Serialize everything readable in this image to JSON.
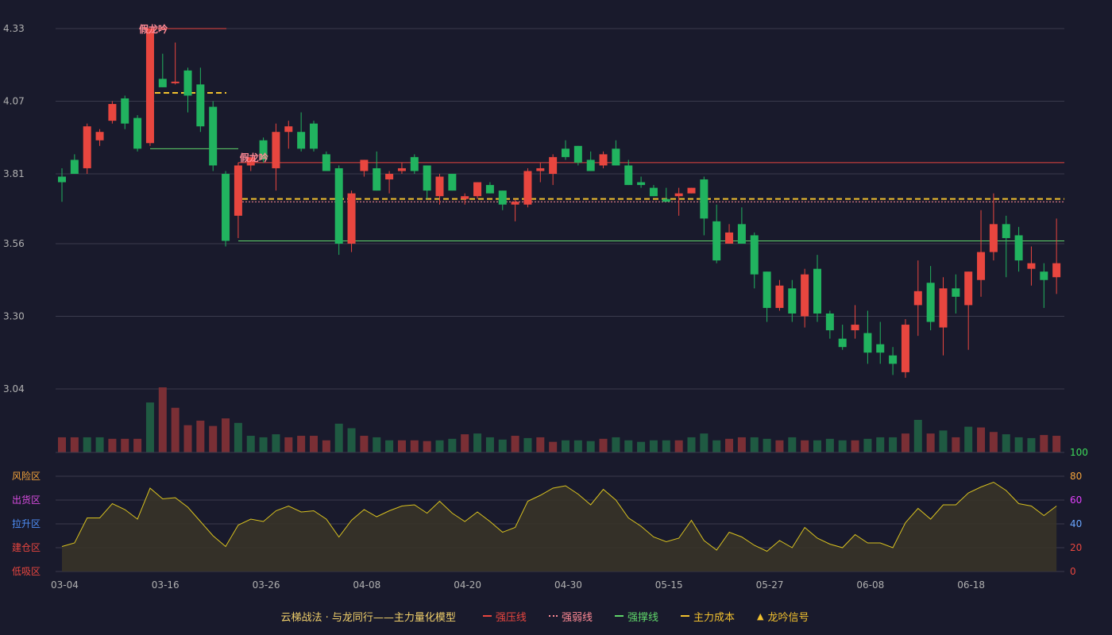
{
  "colors": {
    "bg": "#191a2c",
    "up": "#e8463f",
    "down": "#21b35f",
    "vol_up": "#7a2f35",
    "vol_down": "#1f5a42",
    "pressure": "#e8463f",
    "weak": "#ff8a95",
    "support": "#5fd66a",
    "cost": "#f2c12e",
    "grid": "#3a3b4d",
    "axis_text": "#b0b0b0",
    "area_line": "#d9c21f",
    "area_fill": "#3a3528"
  },
  "legend": {
    "title": "云梯战法 · 与龙同行——主力量化模型",
    "items": [
      {
        "label": "强压线",
        "color": "#e8463f",
        "style": "solid",
        "icon": "solid-line"
      },
      {
        "label": "强弱线",
        "color": "#ff8a95",
        "style": "dotted",
        "icon": "dotted-line"
      },
      {
        "label": "强撑线",
        "color": "#5fd66a",
        "style": "solid",
        "icon": "solid-line"
      },
      {
        "label": "主力成本",
        "color": "#f2c12e",
        "style": "dashed",
        "icon": "dashed-line"
      },
      {
        "label": "龙吟信号",
        "color": "#f2c12e",
        "style": "triangle",
        "icon": "triangle-icon"
      }
    ]
  },
  "chart_data": [
    {
      "type": "candlestick",
      "y_axis_ticks": [
        "3.04",
        "3.30",
        "3.56",
        "3.81",
        "4.07",
        "4.33"
      ],
      "ylim": [
        3.04,
        4.33
      ],
      "x_tick_labels": [
        {
          "index": 0,
          "label": "03-04"
        },
        {
          "index": 8,
          "label": "03-16"
        },
        {
          "index": 16,
          "label": "03-26"
        },
        {
          "index": 24,
          "label": "04-08"
        },
        {
          "index": 32,
          "label": "04-20"
        },
        {
          "index": 40,
          "label": "04-30"
        },
        {
          "index": 48,
          "label": "05-15"
        },
        {
          "index": 56,
          "label": "05-27"
        },
        {
          "index": 64,
          "label": "06-08"
        },
        {
          "index": 72,
          "label": "06-18"
        }
      ],
      "ohlc": [
        [
          3.8,
          3.83,
          3.71,
          3.78
        ],
        [
          3.86,
          3.88,
          3.81,
          3.81
        ],
        [
          3.83,
          3.99,
          3.81,
          3.98
        ],
        [
          3.93,
          3.97,
          3.91,
          3.96
        ],
        [
          4.0,
          4.07,
          3.99,
          4.06
        ],
        [
          4.08,
          4.09,
          3.97,
          3.99
        ],
        [
          4.01,
          4.02,
          3.89,
          3.9
        ],
        [
          3.92,
          4.33,
          3.91,
          4.33
        ],
        [
          4.15,
          4.24,
          4.12,
          4.12
        ],
        [
          4.14,
          4.28,
          4.13,
          4.14
        ],
        [
          4.18,
          4.19,
          4.03,
          4.09
        ],
        [
          4.13,
          4.19,
          3.96,
          3.98
        ],
        [
          4.05,
          4.07,
          3.82,
          3.84
        ],
        [
          3.81,
          3.82,
          3.55,
          3.57
        ],
        [
          3.66,
          3.85,
          3.58,
          3.84
        ],
        [
          3.84,
          3.86,
          3.82,
          3.87
        ],
        [
          3.93,
          3.94,
          3.85,
          3.86
        ],
        [
          3.83,
          3.99,
          3.75,
          3.96
        ],
        [
          3.96,
          4.0,
          3.9,
          3.98
        ],
        [
          3.96,
          4.03,
          3.89,
          3.9
        ],
        [
          3.99,
          4.0,
          3.89,
          3.9
        ],
        [
          3.88,
          3.89,
          3.82,
          3.82
        ],
        [
          3.83,
          3.84,
          3.52,
          3.56
        ],
        [
          3.56,
          3.75,
          3.53,
          3.74
        ],
        [
          3.82,
          3.86,
          3.8,
          3.86
        ],
        [
          3.83,
          3.89,
          3.75,
          3.75
        ],
        [
          3.79,
          3.82,
          3.74,
          3.81
        ],
        [
          3.82,
          3.85,
          3.81,
          3.83
        ],
        [
          3.87,
          3.88,
          3.81,
          3.82
        ],
        [
          3.84,
          3.84,
          3.72,
          3.75
        ],
        [
          3.73,
          3.81,
          3.7,
          3.8
        ],
        [
          3.81,
          3.81,
          3.75,
          3.75
        ],
        [
          3.72,
          3.74,
          3.7,
          3.73
        ],
        [
          3.73,
          3.78,
          3.72,
          3.78
        ],
        [
          3.77,
          3.78,
          3.74,
          3.74
        ],
        [
          3.75,
          3.75,
          3.68,
          3.7
        ],
        [
          3.7,
          3.72,
          3.64,
          3.71
        ],
        [
          3.7,
          3.83,
          3.69,
          3.82
        ],
        [
          3.82,
          3.85,
          3.78,
          3.83
        ],
        [
          3.81,
          3.88,
          3.77,
          3.87
        ],
        [
          3.9,
          3.93,
          3.86,
          3.87
        ],
        [
          3.91,
          3.91,
          3.84,
          3.85
        ],
        [
          3.86,
          3.89,
          3.82,
          3.82
        ],
        [
          3.84,
          3.89,
          3.83,
          3.88
        ],
        [
          3.9,
          3.93,
          3.84,
          3.84
        ],
        [
          3.84,
          3.86,
          3.77,
          3.77
        ],
        [
          3.78,
          3.8,
          3.76,
          3.77
        ],
        [
          3.76,
          3.77,
          3.73,
          3.73
        ],
        [
          3.72,
          3.76,
          3.71,
          3.71
        ],
        [
          3.73,
          3.76,
          3.66,
          3.74
        ],
        [
          3.74,
          3.76,
          3.74,
          3.76
        ],
        [
          3.79,
          3.8,
          3.59,
          3.65
        ],
        [
          3.64,
          3.7,
          3.49,
          3.5
        ],
        [
          3.56,
          3.63,
          3.56,
          3.6
        ],
        [
          3.63,
          3.69,
          3.56,
          3.56
        ],
        [
          3.59,
          3.6,
          3.4,
          3.45
        ],
        [
          3.46,
          3.46,
          3.28,
          3.33
        ],
        [
          3.33,
          3.43,
          3.32,
          3.41
        ],
        [
          3.4,
          3.43,
          3.28,
          3.31
        ],
        [
          3.3,
          3.47,
          3.26,
          3.45
        ],
        [
          3.47,
          3.52,
          3.28,
          3.31
        ],
        [
          3.31,
          3.32,
          3.22,
          3.25
        ],
        [
          3.22,
          3.27,
          3.18,
          3.19
        ],
        [
          3.25,
          3.34,
          3.22,
          3.27
        ],
        [
          3.24,
          3.32,
          3.13,
          3.17
        ],
        [
          3.2,
          3.28,
          3.13,
          3.17
        ],
        [
          3.16,
          3.19,
          3.09,
          3.13
        ],
        [
          3.1,
          3.29,
          3.08,
          3.27
        ],
        [
          3.34,
          3.5,
          3.23,
          3.39
        ],
        [
          3.42,
          3.48,
          3.25,
          3.28
        ],
        [
          3.26,
          3.44,
          3.16,
          3.4
        ],
        [
          3.4,
          3.45,
          3.31,
          3.37
        ],
        [
          3.34,
          3.46,
          3.18,
          3.46
        ],
        [
          3.43,
          3.68,
          3.37,
          3.53
        ],
        [
          3.53,
          3.74,
          3.5,
          3.63
        ],
        [
          3.63,
          3.66,
          3.44,
          3.58
        ],
        [
          3.59,
          3.62,
          3.46,
          3.5
        ],
        [
          3.47,
          3.55,
          3.41,
          3.49
        ],
        [
          3.46,
          3.49,
          3.33,
          3.43
        ],
        [
          3.44,
          3.65,
          3.38,
          3.49
        ]
      ],
      "volumes": [
        20,
        20,
        20,
        20,
        18,
        18,
        18,
        66,
        86,
        59,
        36,
        42,
        35,
        45,
        39,
        22,
        20,
        24,
        20,
        22,
        22,
        16,
        38,
        32,
        22,
        20,
        16,
        16,
        16,
        15,
        16,
        18,
        24,
        25,
        20,
        17,
        22,
        19,
        20,
        14,
        16,
        16,
        15,
        18,
        20,
        16,
        14,
        16,
        16,
        16,
        20,
        25,
        16,
        18,
        20,
        20,
        18,
        16,
        20,
        16,
        16,
        18,
        16,
        16,
        18,
        20,
        20,
        25,
        43,
        25,
        29,
        20,
        34,
        33,
        27,
        24,
        20,
        19,
        23,
        22
      ],
      "volume_up": [
        true,
        true,
        false,
        false,
        true,
        true,
        true,
        false,
        true,
        true,
        true,
        true,
        true,
        true,
        false,
        false,
        false,
        false,
        true,
        true,
        true,
        true,
        false,
        false,
        true,
        false,
        false,
        true,
        true,
        true,
        false,
        false,
        true,
        false,
        false,
        false,
        true,
        false,
        true,
        true,
        false,
        false,
        false,
        true,
        false,
        false,
        false,
        false,
        false,
        true,
        false,
        false,
        false,
        true,
        true,
        false,
        false,
        true,
        false,
        true,
        false,
        false,
        false,
        true,
        false,
        false,
        false,
        true,
        false,
        true,
        false,
        true,
        false,
        true,
        true,
        false,
        false,
        false,
        true,
        true
      ],
      "levels": {
        "pressure_upper": 4.33,
        "cost_upper": 4.1,
        "support_upper": 3.9,
        "pressure_main": 3.85,
        "cost_main": 3.72,
        "weak_main": 3.71,
        "support_main": 3.57
      },
      "signals": [
        {
          "index": 7,
          "label": "假龙吟",
          "price": 4.33
        },
        {
          "index": 15,
          "label": "假龙吟",
          "price": 3.87
        }
      ]
    },
    {
      "type": "area",
      "ylim": [
        0,
        100
      ],
      "y_ticks": [
        "0",
        "20",
        "40",
        "60",
        "80",
        "100"
      ],
      "zone_labels": [
        "低吸区",
        "建仓区",
        "拉升区",
        "出货区",
        "风险区"
      ],
      "zone_colors": [
        "#e8463f",
        "#e8463f",
        "#4f8ff7",
        "#d84ce0",
        "#f2a23a"
      ],
      "tick_colors": [
        "#e8463f",
        "#e8463f",
        "#6aa6ff",
        "#e040fb",
        "#f2a23a",
        "#3ddc5a"
      ],
      "values": [
        21,
        24,
        45,
        45,
        57,
        52,
        44,
        70,
        61,
        62,
        54,
        42,
        30,
        21,
        39,
        44,
        42,
        51,
        55,
        50,
        51,
        44,
        29,
        43,
        52,
        46,
        51,
        55,
        56,
        49,
        59,
        49,
        42,
        50,
        42,
        33,
        37,
        59,
        64,
        70,
        72,
        65,
        56,
        69,
        60,
        45,
        38,
        29,
        25,
        28,
        43,
        26,
        18,
        33,
        29,
        22,
        17,
        26,
        20,
        37,
        28,
        23,
        20,
        31,
        24,
        24,
        20,
        41,
        53,
        44,
        56,
        56,
        66,
        71,
        75,
        68,
        57,
        55,
        47,
        55
      ]
    }
  ]
}
